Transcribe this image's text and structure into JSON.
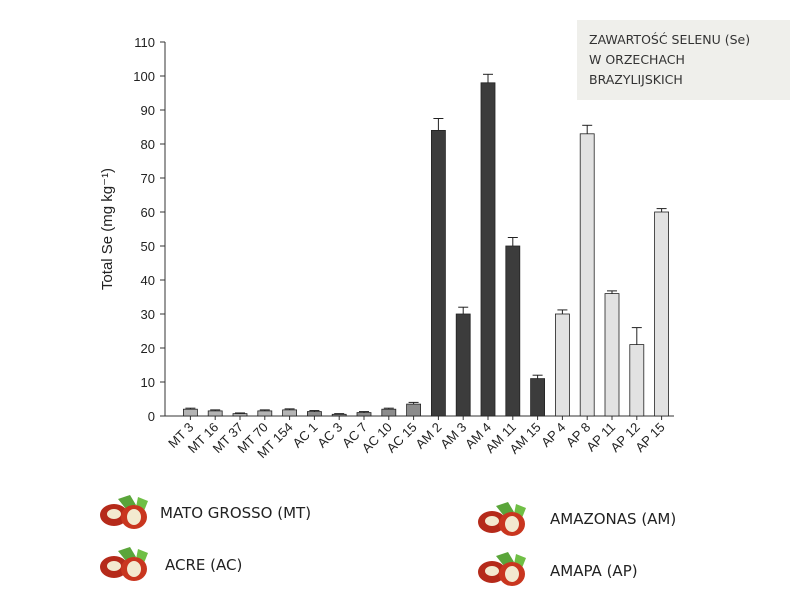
{
  "chart_data": {
    "type": "bar",
    "title_lines": [
      "ZAWARTOŚĆ SELENU (Se)",
      "W ORZECHACH",
      "BRAZYLIJSKICH"
    ],
    "y_label": "Total Se (mg kg⁻¹)",
    "categories": [
      "MT 3",
      "MT 16",
      "MT 37",
      "MT 70",
      "MT 154",
      "AC 1",
      "AC 3",
      "AC 7",
      "AC 10",
      "AC 15",
      "AM 2",
      "AM 3",
      "AM 4",
      "AM 11",
      "AM 15",
      "AP 4",
      "AP 8",
      "AP 11",
      "AP 12",
      "AP 15"
    ],
    "series": [
      {
        "name": "MATO GROSSO  (MT)",
        "color": "#b4b4b4",
        "values": [
          2,
          1.5,
          0.7,
          1.5,
          1.8,
          null,
          null,
          null,
          null,
          null,
          null,
          null,
          null,
          null,
          null,
          null,
          null,
          null,
          null,
          null
        ],
        "errors": [
          0.3,
          0.3,
          0.2,
          0.3,
          0.3,
          null,
          null,
          null,
          null,
          null,
          null,
          null,
          null,
          null,
          null,
          null,
          null,
          null,
          null,
          null
        ]
      },
      {
        "name": "ACRE (AC)",
        "color": "#8c8c8c",
        "values": [
          null,
          null,
          null,
          null,
          null,
          1.3,
          0.5,
          1,
          2,
          3.5,
          null,
          null,
          null,
          null,
          null,
          null,
          null,
          null,
          null,
          null
        ],
        "errors": [
          null,
          null,
          null,
          null,
          null,
          0.3,
          0.2,
          0.3,
          0.3,
          0.5,
          null,
          null,
          null,
          null,
          null,
          null,
          null,
          null,
          null,
          null
        ]
      },
      {
        "name": "AMAZONAS  (AM)",
        "color": "#3c3c3c",
        "values": [
          null,
          null,
          null,
          null,
          null,
          null,
          null,
          null,
          null,
          null,
          84,
          30,
          98,
          50,
          11,
          null,
          null,
          null,
          null,
          null
        ],
        "errors": [
          null,
          null,
          null,
          null,
          null,
          null,
          null,
          null,
          null,
          null,
          3.5,
          2,
          2.5,
          2.5,
          1,
          null,
          null,
          null,
          null,
          null
        ]
      },
      {
        "name": "AMAPA (AP)",
        "color": "#e2e2e2",
        "values": [
          null,
          null,
          null,
          null,
          null,
          null,
          null,
          null,
          null,
          null,
          null,
          null,
          null,
          null,
          null,
          30,
          83,
          36,
          21,
          60
        ],
        "errors": [
          null,
          null,
          null,
          null,
          null,
          null,
          null,
          null,
          null,
          null,
          null,
          null,
          null,
          null,
          null,
          1.2,
          2.5,
          0.8,
          5,
          1
        ]
      }
    ],
    "ylim": [
      0,
      110
    ],
    "yticks": [
      0,
      10,
      20,
      30,
      40,
      50,
      60,
      70,
      80,
      90,
      100,
      110
    ]
  }
}
